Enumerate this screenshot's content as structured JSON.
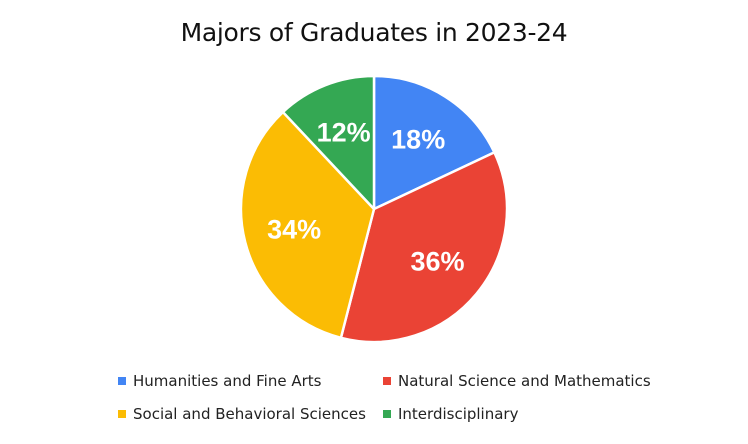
{
  "chart_data": {
    "type": "pie",
    "title": "Majors of Graduates in 2023-24",
    "slices": [
      {
        "name": "Humanities and Fine Arts",
        "value": 18,
        "label": "18%",
        "color": "#4285F4"
      },
      {
        "name": "Natural Science and Mathematics",
        "value": 36,
        "label": "36%",
        "color": "#EA4335"
      },
      {
        "name": "Social and Behavioral Sciences",
        "value": 34,
        "label": "34%",
        "color": "#FBBC04"
      },
      {
        "name": "Interdisciplinary",
        "value": 12,
        "label": "12%",
        "color": "#34A853"
      }
    ],
    "legend_position": "bottom",
    "start_angle": "12 o'clock",
    "direction": "clockwise"
  }
}
